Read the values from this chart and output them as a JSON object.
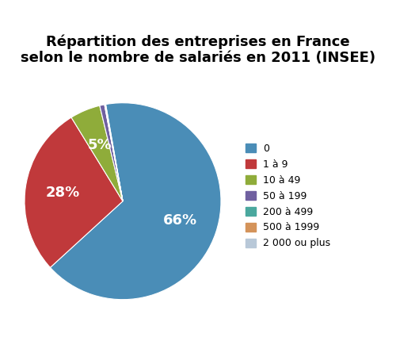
{
  "title": "Répartition des entreprises en France\nselon le nombre de salariés en 2011 (INSEE)",
  "labels": [
    "0",
    "1 à 9",
    "10 à 49",
    "50 à 199",
    "200 à 499",
    "500 à 1999",
    "2 000 ou plus"
  ],
  "colors": [
    "#4a8db7",
    "#c0393b",
    "#8fac3a",
    "#7060a0",
    "#4aa89e",
    "#d4935a",
    "#b8c8d8"
  ],
  "values": [
    66,
    28,
    5,
    0.8,
    0.05,
    0.05,
    0.1
  ],
  "pct_labels": [
    "66%",
    "28%",
    "5%",
    "",
    "",
    "",
    ""
  ],
  "bg_color": "#ffffff",
  "title_fontsize": 13,
  "startangle": 100
}
